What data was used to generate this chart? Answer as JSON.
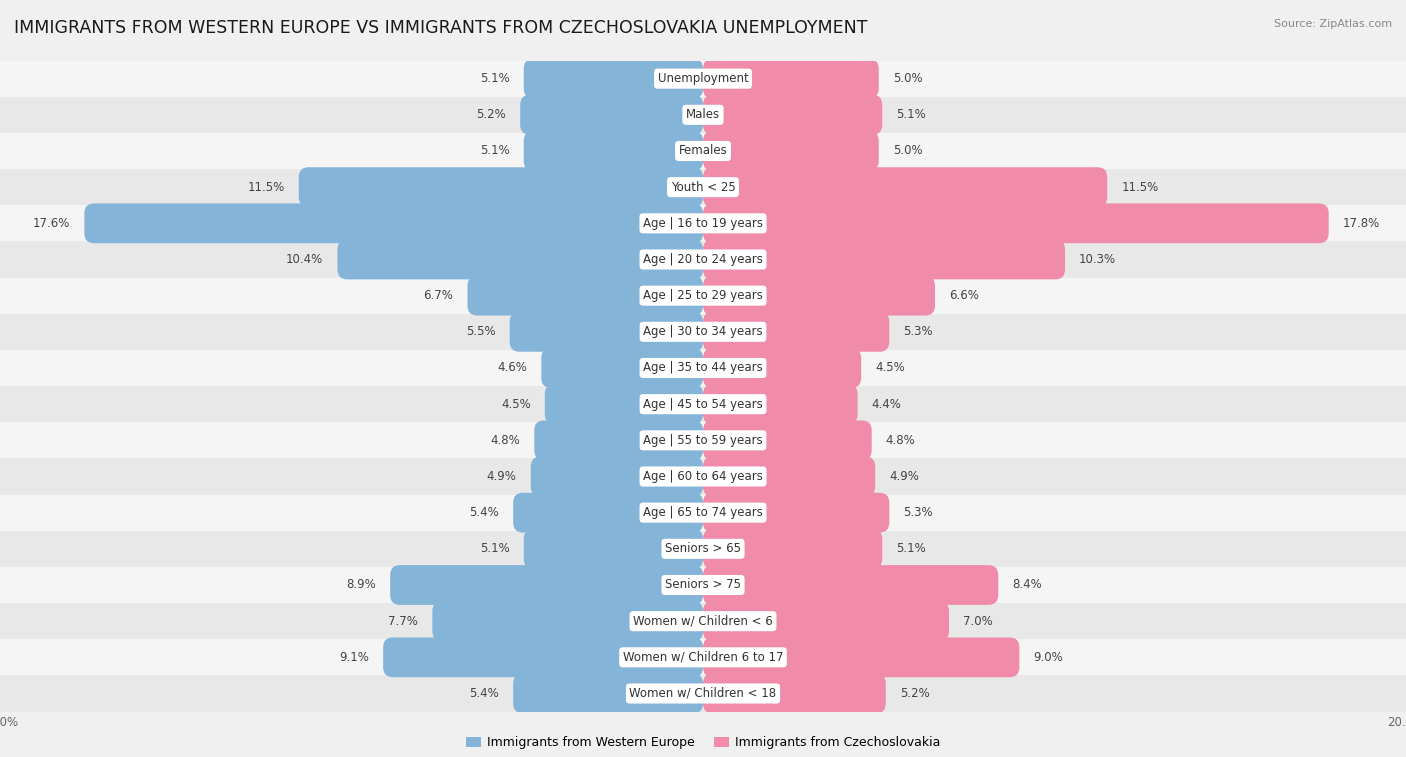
{
  "title": "IMMIGRANTS FROM WESTERN EUROPE VS IMMIGRANTS FROM CZECHOSLOVAKIA UNEMPLOYMENT",
  "source": "Source: ZipAtlas.com",
  "categories": [
    "Unemployment",
    "Males",
    "Females",
    "Youth < 25",
    "Age | 16 to 19 years",
    "Age | 20 to 24 years",
    "Age | 25 to 29 years",
    "Age | 30 to 34 years",
    "Age | 35 to 44 years",
    "Age | 45 to 54 years",
    "Age | 55 to 59 years",
    "Age | 60 to 64 years",
    "Age | 65 to 74 years",
    "Seniors > 65",
    "Seniors > 75",
    "Women w/ Children < 6",
    "Women w/ Children 6 to 17",
    "Women w/ Children < 18"
  ],
  "left_values": [
    5.1,
    5.2,
    5.1,
    11.5,
    17.6,
    10.4,
    6.7,
    5.5,
    4.6,
    4.5,
    4.8,
    4.9,
    5.4,
    5.1,
    8.9,
    7.7,
    9.1,
    5.4
  ],
  "right_values": [
    5.0,
    5.1,
    5.0,
    11.5,
    17.8,
    10.3,
    6.6,
    5.3,
    4.5,
    4.4,
    4.8,
    4.9,
    5.3,
    5.1,
    8.4,
    7.0,
    9.0,
    5.2
  ],
  "left_color": "#85b4d9",
  "right_color": "#f08caa",
  "left_label": "Immigrants from Western Europe",
  "right_label": "Immigrants from Czechoslovakia",
  "axis_limit": 20.0,
  "row_colors": [
    "#f5f5f5",
    "#e8e8e8"
  ],
  "title_fontsize": 12.5,
  "label_fontsize": 8.5,
  "value_fontsize": 8.5
}
